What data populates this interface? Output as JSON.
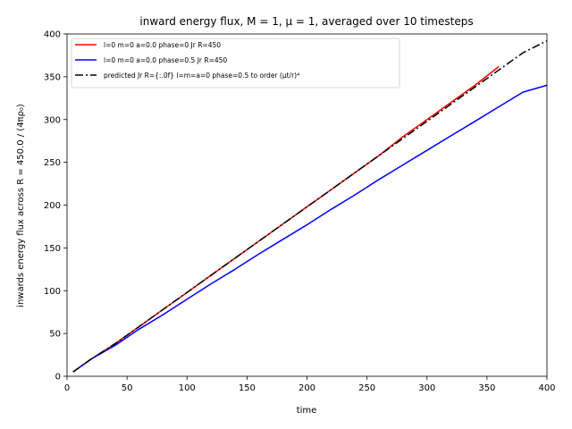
{
  "chart_data": {
    "type": "line",
    "title": "inward energy flux, M = 1, μ = 1, averaged over 10 timesteps",
    "xlabel": "time",
    "ylabel": "inwards energy flux across R = 450.0 / (4πρ₀)",
    "xlim": [
      0,
      400
    ],
    "ylim": [
      0,
      400
    ],
    "xticks": [
      0,
      50,
      100,
      150,
      200,
      250,
      300,
      350,
      400
    ],
    "yticks": [
      0,
      50,
      100,
      150,
      200,
      250,
      300,
      350,
      400
    ],
    "grid": false,
    "legend_position": "top-left",
    "series": [
      {
        "name": "l=0 m=0 a=0.0 phase=0 Jr R=450",
        "color": "#ff0000",
        "style": "solid",
        "x": [
          5,
          20,
          40,
          60,
          80,
          100,
          120,
          140,
          160,
          180,
          200,
          220,
          240,
          260,
          280,
          300,
          320,
          340,
          360
        ],
        "y": [
          5,
          20,
          38,
          58,
          78,
          98,
          118,
          138,
          158,
          178,
          198,
          218,
          238,
          258,
          280,
          300,
          320,
          340,
          362
        ]
      },
      {
        "name": "l=0 m=0 a=0.0 phase=0.5 Jr R=450",
        "color": "#0000ff",
        "style": "solid",
        "x": [
          5,
          20,
          40,
          60,
          80,
          100,
          120,
          140,
          160,
          180,
          200,
          220,
          240,
          260,
          280,
          300,
          320,
          340,
          360,
          380,
          400
        ],
        "y": [
          5,
          20,
          36,
          55,
          72,
          90,
          108,
          125,
          143,
          160,
          177,
          195,
          212,
          230,
          247,
          264,
          281,
          298,
          315,
          332,
          340
        ]
      },
      {
        "name": "predicted Jr R={:.0f} l=m=a=0 phase=0.5 to order (μt/r)⁴",
        "color": "#000000",
        "style": "dashdot",
        "x": [
          5,
          20,
          40,
          60,
          80,
          100,
          120,
          140,
          160,
          180,
          200,
          220,
          240,
          260,
          280,
          300,
          320,
          340,
          360,
          380,
          400
        ],
        "y": [
          5,
          20,
          38,
          58,
          78,
          98,
          118,
          138,
          158,
          178,
          198,
          218,
          238,
          258,
          278,
          298,
          318,
          338,
          358,
          378,
          392
        ]
      }
    ]
  }
}
